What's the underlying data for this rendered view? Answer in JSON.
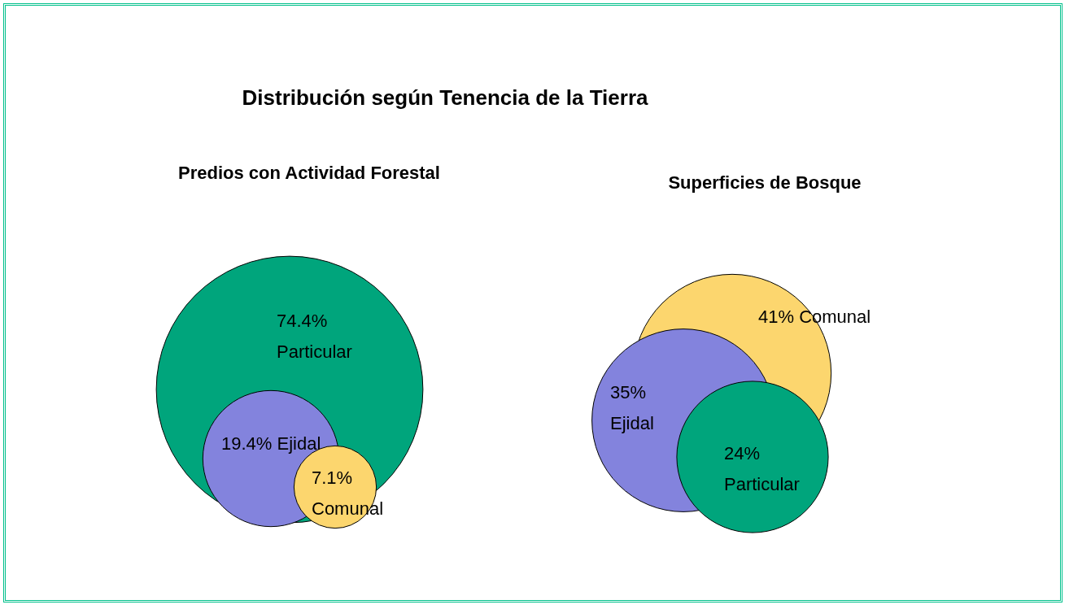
{
  "chart_data": [
    {
      "type": "other",
      "title": "Distribución según Tenencia de la Tierra"
    },
    {
      "type": "other",
      "title": "Predios con Actividad Forestal",
      "categories": [
        "Particular",
        "Ejidal",
        "Comunal"
      ],
      "values": [
        74.4,
        19.4,
        7.1
      ],
      "value_labels": [
        "74.4%",
        "19.4%",
        "7.1%"
      ],
      "colors": [
        "#00a57c",
        "#8383dd",
        "#fcd66e"
      ]
    },
    {
      "type": "other",
      "title": "Superficies de Bosque",
      "categories": [
        "Comunal",
        "Ejidal",
        "Particular"
      ],
      "values": [
        41,
        35,
        24
      ],
      "value_labels": [
        "41%",
        "35%",
        "24%"
      ],
      "colors": [
        "#fcd66e",
        "#8383dd",
        "#00a57c"
      ]
    }
  ]
}
